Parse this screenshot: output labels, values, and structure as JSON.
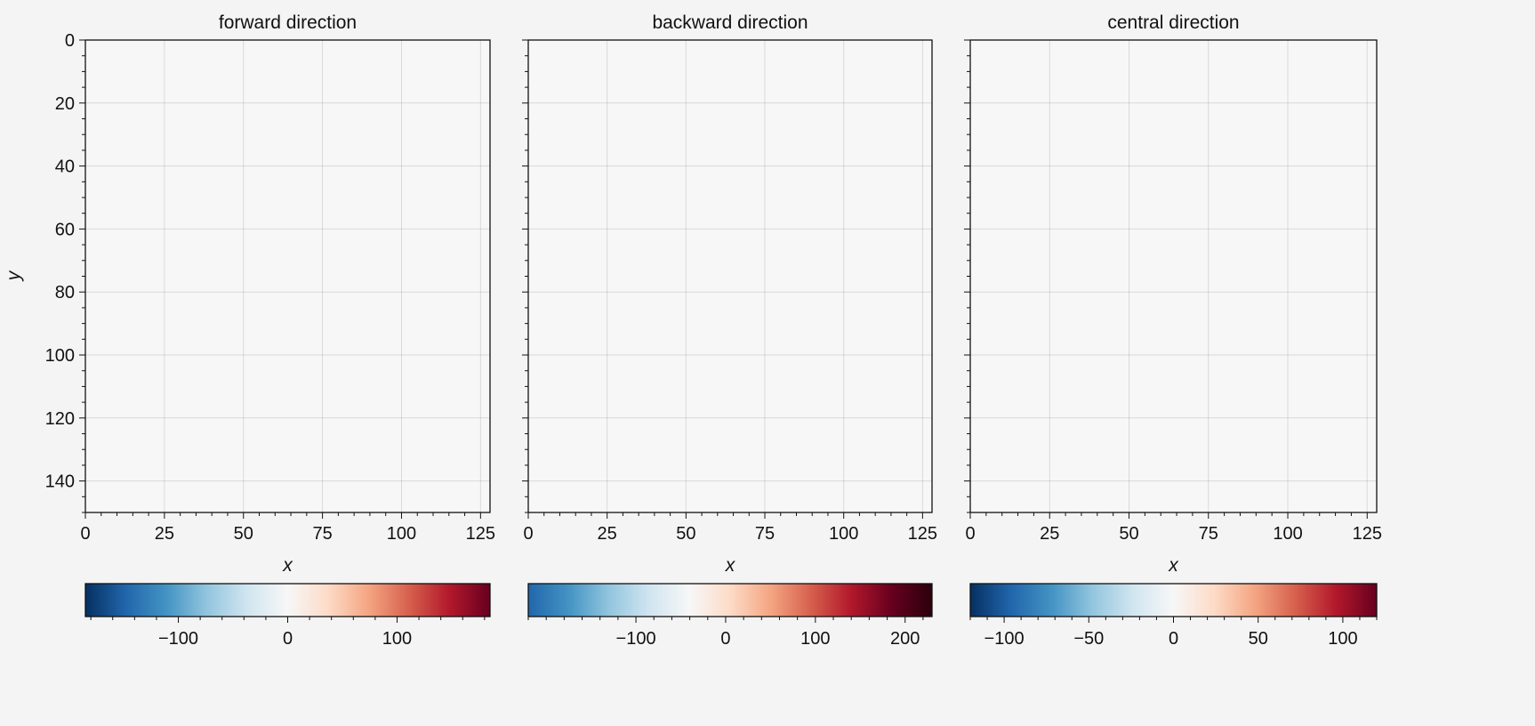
{
  "figure": {
    "background": "#f4f4f4",
    "shared_ylabel": "y"
  },
  "chart_data": [
    {
      "type": "heatmap",
      "title": "forward direction",
      "xlabel": "x",
      "ylabel": "y",
      "xlim": [
        0,
        128
      ],
      "ylim": [
        150,
        0
      ],
      "x_ticks": [
        0,
        25,
        50,
        75,
        100,
        125
      ],
      "y_ticks": [
        0,
        20,
        40,
        60,
        80,
        100,
        120,
        140
      ],
      "grid": true,
      "colorbar": {
        "placement": "bottom",
        "vmin": -185,
        "vmax": 185,
        "ticks": [
          -100,
          0,
          100
        ],
        "colormap": "RdBu_r",
        "colors": [
          "#053061",
          "#2166ac",
          "#4393c3",
          "#92c5de",
          "#d1e5f0",
          "#f7f7f7",
          "#fddbc7",
          "#f4a582",
          "#d6604d",
          "#b2182b",
          "#67001f"
        ]
      }
    },
    {
      "type": "heatmap",
      "title": "backward direction",
      "xlabel": "x",
      "ylabel": "",
      "xlim": [
        0,
        128
      ],
      "ylim": [
        150,
        0
      ],
      "x_ticks": [
        0,
        25,
        50,
        75,
        100,
        125
      ],
      "y_ticks": [
        0,
        20,
        40,
        60,
        80,
        100,
        120,
        140
      ],
      "grid": true,
      "colorbar": {
        "placement": "bottom",
        "vmin": -220,
        "vmax": 230,
        "ticks": [
          -100,
          0,
          100,
          200
        ],
        "colormap": "RdBu_r",
        "colors": [
          "#2166ac",
          "#4393c3",
          "#92c5de",
          "#d1e5f0",
          "#f7f7f7",
          "#fddbc7",
          "#f4a582",
          "#d6604d",
          "#b2182b",
          "#67001f",
          "#2a000c"
        ]
      }
    },
    {
      "type": "heatmap",
      "title": "central direction",
      "xlabel": "x",
      "ylabel": "",
      "xlim": [
        0,
        128
      ],
      "ylim": [
        150,
        0
      ],
      "x_ticks": [
        0,
        25,
        50,
        75,
        100,
        125
      ],
      "y_ticks": [
        0,
        20,
        40,
        60,
        80,
        100,
        120,
        140
      ],
      "grid": true,
      "colorbar": {
        "placement": "bottom",
        "vmin": -120,
        "vmax": 120,
        "ticks": [
          -100,
          -50,
          0,
          50,
          100
        ],
        "colormap": "RdBu_r",
        "colors": [
          "#053061",
          "#2166ac",
          "#4393c3",
          "#92c5de",
          "#d1e5f0",
          "#f7f7f7",
          "#fddbc7",
          "#f4a582",
          "#d6604d",
          "#b2182b",
          "#67001f"
        ]
      }
    }
  ]
}
